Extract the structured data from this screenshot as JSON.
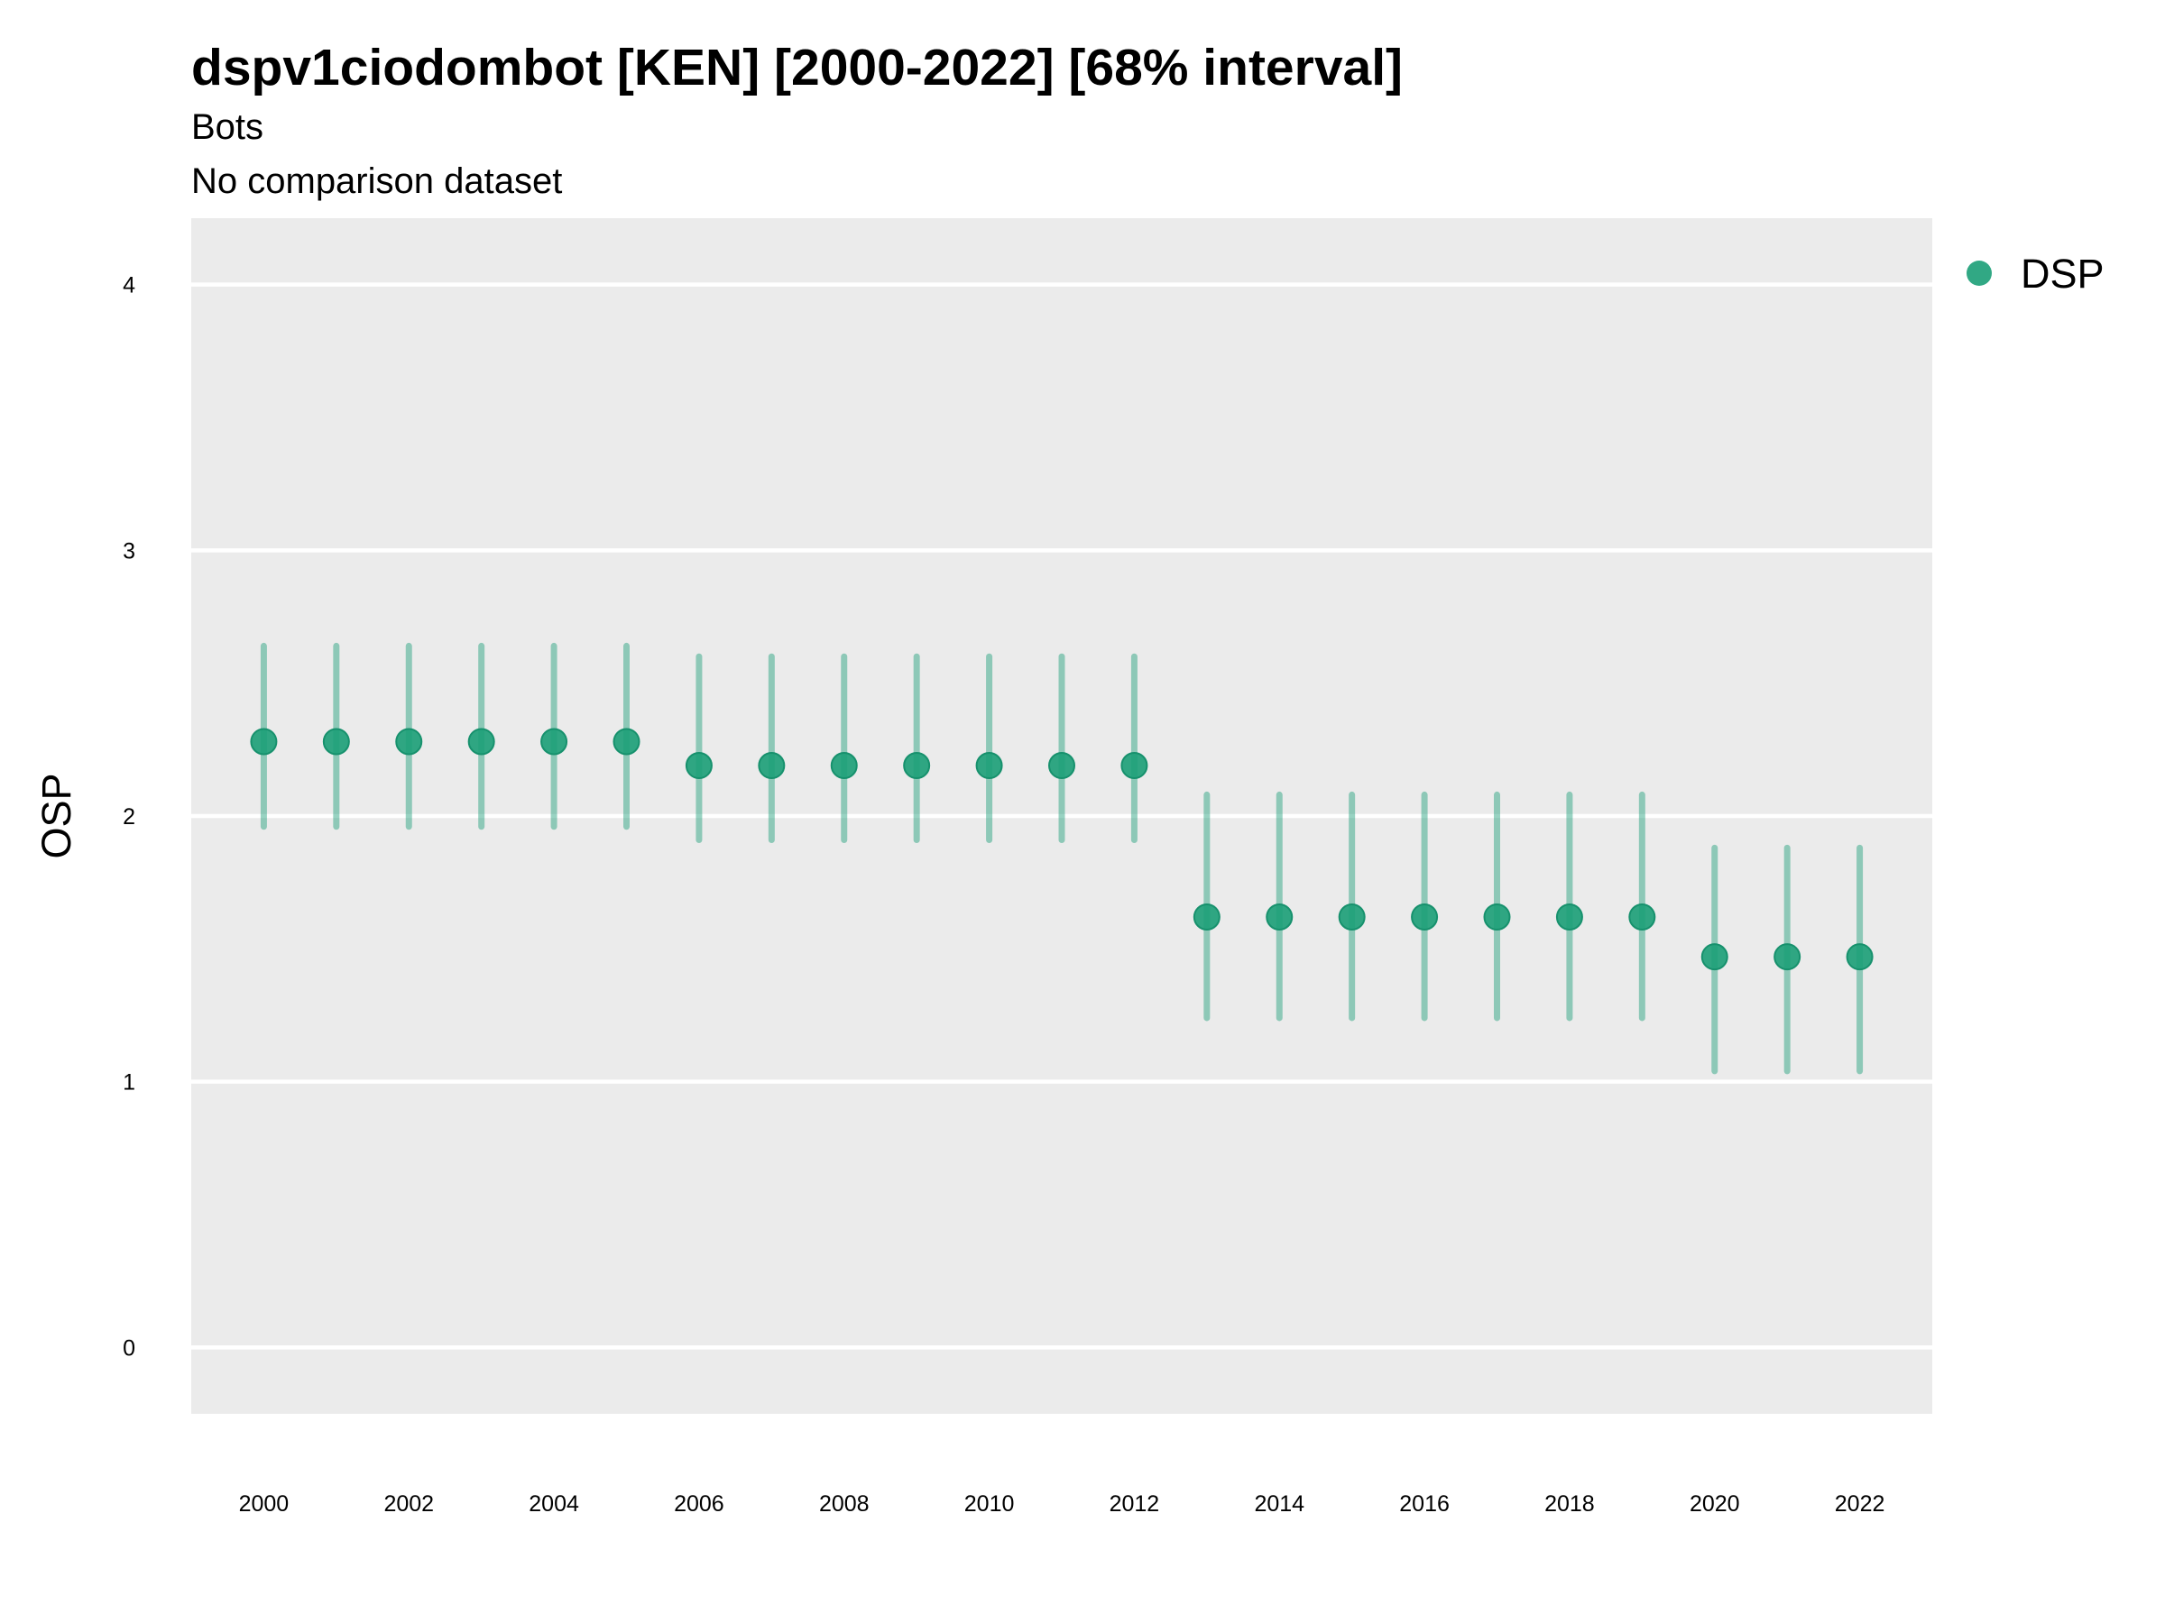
{
  "chart_data": {
    "type": "scatter",
    "title": "dspv1ciodombot [KEN] [2000-2022] [68% interval]",
    "subtitle": "Bots",
    "caption": "No comparison dataset",
    "xlabel": "",
    "ylabel": "OSP",
    "ylim": [
      -0.25,
      4.25
    ],
    "xlim": [
      1999,
      2023
    ],
    "yticks": [
      0,
      1,
      2,
      3,
      4
    ],
    "xticks": [
      2000,
      2002,
      2004,
      2006,
      2008,
      2010,
      2012,
      2014,
      2016,
      2018,
      2020,
      2022
    ],
    "grid": true,
    "legend_position": "right",
    "series": [
      {
        "name": "DSP",
        "color": "#1b9e77",
        "x": [
          2000,
          2001,
          2002,
          2003,
          2004,
          2005,
          2006,
          2007,
          2008,
          2009,
          2010,
          2011,
          2012,
          2013,
          2014,
          2015,
          2016,
          2017,
          2018,
          2019,
          2020,
          2021,
          2022
        ],
        "y": [
          2.28,
          2.28,
          2.28,
          2.28,
          2.28,
          2.28,
          2.19,
          2.19,
          2.19,
          2.19,
          2.19,
          2.19,
          2.19,
          1.62,
          1.62,
          1.62,
          1.62,
          1.62,
          1.62,
          1.62,
          1.47,
          1.47,
          1.47
        ],
        "lower": [
          1.96,
          1.96,
          1.96,
          1.96,
          1.96,
          1.96,
          1.91,
          1.91,
          1.91,
          1.91,
          1.91,
          1.91,
          1.91,
          1.24,
          1.24,
          1.24,
          1.24,
          1.24,
          1.24,
          1.24,
          1.04,
          1.04,
          1.04
        ],
        "upper": [
          2.64,
          2.64,
          2.64,
          2.64,
          2.64,
          2.64,
          2.6,
          2.6,
          2.6,
          2.6,
          2.6,
          2.6,
          2.6,
          2.08,
          2.08,
          2.08,
          2.08,
          2.08,
          2.08,
          2.08,
          1.88,
          1.88,
          1.88
        ]
      }
    ]
  }
}
